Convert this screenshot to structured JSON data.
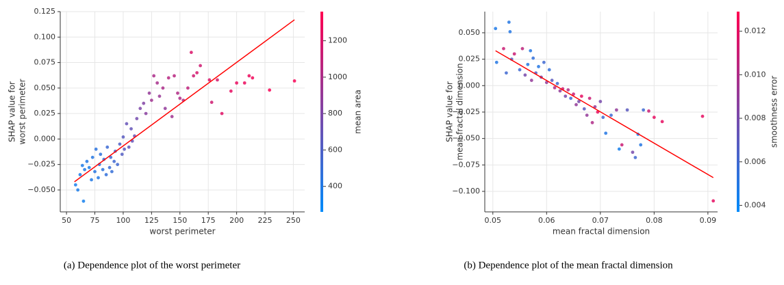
{
  "chart_data": [
    {
      "type": "scatter",
      "caption": "(a)  Dependence plot of the worst perimeter",
      "xlabel": "worst perimeter",
      "ylabel": [
        "SHAP value for",
        "worst perimeter"
      ],
      "colorbar_label": "mean area",
      "cmap": [
        "#008bfb",
        "#ff0051"
      ],
      "x": [
        58,
        60,
        62,
        64,
        65,
        66,
        68,
        70,
        72,
        73,
        75,
        76,
        78,
        79,
        80,
        82,
        83,
        85,
        86,
        88,
        89,
        90,
        92,
        93,
        95,
        97,
        99,
        100,
        101,
        103,
        105,
        107,
        108,
        110,
        112,
        115,
        118,
        120,
        123,
        125,
        127,
        130,
        132,
        135,
        137,
        140,
        143,
        145,
        148,
        150,
        153,
        157,
        160,
        162,
        165,
        168,
        176,
        178,
        183,
        187,
        195,
        200,
        207,
        211,
        214,
        229,
        251
      ],
      "y": [
        -0.045,
        -0.05,
        -0.035,
        -0.026,
        -0.061,
        -0.03,
        -0.022,
        -0.028,
        -0.04,
        -0.018,
        -0.032,
        -0.01,
        -0.038,
        -0.025,
        -0.015,
        -0.03,
        -0.02,
        -0.035,
        -0.008,
        -0.028,
        -0.018,
        -0.032,
        -0.022,
        -0.012,
        -0.025,
        -0.005,
        -0.015,
        0.002,
        -0.01,
        0.015,
        -0.008,
        0.01,
        -0.002,
        0.003,
        0.02,
        0.03,
        0.035,
        0.025,
        0.045,
        0.038,
        0.062,
        0.055,
        0.042,
        0.05,
        0.03,
        0.06,
        0.022,
        0.062,
        0.045,
        0.04,
        0.038,
        0.05,
        0.085,
        0.062,
        0.065,
        0.072,
        0.058,
        0.036,
        0.058,
        0.025,
        0.047,
        0.055,
        0.055,
        0.062,
        0.06,
        0.048,
        0.057
      ],
      "c": [
        360,
        380,
        370,
        390,
        350,
        400,
        410,
        380,
        400,
        420,
        430,
        450,
        410,
        440,
        460,
        450,
        470,
        470,
        520,
        500,
        510,
        490,
        530,
        560,
        540,
        600,
        620,
        640,
        650,
        700,
        660,
        690,
        700,
        720,
        760,
        800,
        820,
        850,
        900,
        950,
        1000,
        980,
        920,
        1000,
        890,
        1050,
        950,
        1060,
        1020,
        1010,
        1040,
        1080,
        1200,
        1150,
        1180,
        1150,
        1200,
        1150,
        1180,
        1230,
        1250,
        1270,
        1280,
        1280,
        1300,
        1330,
        1330
      ],
      "trend": {
        "x": [
          57,
          251
        ],
        "y": [
          -0.042,
          0.117
        ],
        "color": "#ff0000"
      },
      "xlim": [
        44.5,
        260
      ],
      "xticks": [
        50,
        75,
        100,
        125,
        150,
        175,
        200,
        225,
        250
      ],
      "ylim": [
        -0.0715,
        0.125
      ],
      "yticks": [
        {
          "value": -0.05,
          "label": "−0.050"
        },
        {
          "value": -0.025,
          "label": "−0.025"
        },
        {
          "value": 0,
          "label": "0.000"
        },
        0.025,
        {
          "value": 0.05,
          "label": "0.050"
        },
        0.075,
        {
          "value": 0.1,
          "label": "0.100"
        },
        0.125
      ],
      "clim": [
        260,
        1360
      ],
      "cticks": [
        400,
        600,
        800,
        1000,
        1200
      ],
      "grid": true
    },
    {
      "type": "scatter",
      "caption": "(b)  Dependence plot of the mean fractal dimension",
      "xlabel": "mean fractal dimension",
      "ylabel": [
        "SHAP value for",
        "mean fractal dimension"
      ],
      "colorbar_label": "smoothness error",
      "cmap": [
        "#008bfb",
        "#ff0051"
      ],
      "x": [
        0.0505,
        0.0507,
        0.052,
        0.0525,
        0.053,
        0.0532,
        0.0535,
        0.054,
        0.055,
        0.0555,
        0.056,
        0.0565,
        0.057,
        0.0572,
        0.0575,
        0.058,
        0.0585,
        0.059,
        0.0595,
        0.06,
        0.0605,
        0.061,
        0.0615,
        0.062,
        0.0625,
        0.063,
        0.0635,
        0.064,
        0.0645,
        0.065,
        0.0655,
        0.066,
        0.0665,
        0.067,
        0.0675,
        0.068,
        0.0685,
        0.069,
        0.0695,
        0.07,
        0.0705,
        0.071,
        0.072,
        0.073,
        0.0735,
        0.074,
        0.075,
        0.076,
        0.0765,
        0.077,
        0.0775,
        0.078,
        0.079,
        0.08,
        0.0815,
        0.089,
        0.091
      ],
      "y": [
        0.054,
        0.022,
        0.035,
        0.012,
        0.06,
        0.051,
        0.025,
        0.03,
        0.015,
        0.035,
        0.01,
        0.02,
        0.033,
        0.005,
        0.026,
        0.012,
        0.018,
        0.008,
        0.022,
        0.003,
        0.015,
        0.005,
        -0.002,
        0.002,
        -0.005,
        -0.003,
        -0.01,
        -0.004,
        -0.012,
        -0.008,
        -0.018,
        -0.015,
        -0.01,
        -0.022,
        -0.028,
        -0.012,
        -0.035,
        -0.02,
        -0.025,
        -0.015,
        -0.03,
        -0.045,
        -0.028,
        -0.023,
        -0.06,
        -0.056,
        -0.023,
        -0.063,
        -0.068,
        -0.046,
        -0.056,
        -0.023,
        -0.024,
        -0.03,
        -0.034,
        -0.029,
        -0.109
      ],
      "c": [
        0.0048,
        0.005,
        0.011,
        0.006,
        0.005,
        0.005,
        0.007,
        0.011,
        0.006,
        0.0105,
        0.008,
        0.005,
        0.005,
        0.009,
        0.0055,
        0.007,
        0.005,
        0.008,
        0.006,
        0.009,
        0.0055,
        0.007,
        0.01,
        0.006,
        0.009,
        0.011,
        0.008,
        0.01,
        0.006,
        0.011,
        0.009,
        0.008,
        0.012,
        0.007,
        0.009,
        0.011,
        0.01,
        0.009,
        0.012,
        0.008,
        0.006,
        0.005,
        0.006,
        0.009,
        0.0045,
        0.011,
        0.007,
        0.008,
        0.006,
        0.0045,
        0.005,
        0.006,
        0.011,
        0.012,
        0.012,
        0.012,
        0.012
      ],
      "trend": {
        "x": [
          0.0505,
          0.091
        ],
        "y": [
          0.033,
          -0.087
        ],
        "color": "#ff0000"
      },
      "xlim": [
        0.0485,
        0.0918
      ],
      "xticks": [
        0.05,
        0.06,
        0.07,
        0.08,
        0.09
      ],
      "ylim": [
        -0.1194,
        0.07
      ],
      "yticks": [
        {
          "value": -0.1,
          "label": "−0.100"
        },
        {
          "value": -0.075,
          "label": "−0.075"
        },
        {
          "value": -0.05,
          "label": "−0.050"
        },
        {
          "value": -0.025,
          "label": "−0.025"
        },
        {
          "value": 0,
          "label": "0.000"
        },
        0.025,
        {
          "value": 0.05,
          "label": "0.050"
        }
      ],
      "clim": [
        0.0037,
        0.0129
      ],
      "cticks": [
        0.004,
        0.006,
        0.008,
        {
          "value": 0.01,
          "label": "0.010"
        },
        0.012
      ],
      "grid": true
    }
  ]
}
